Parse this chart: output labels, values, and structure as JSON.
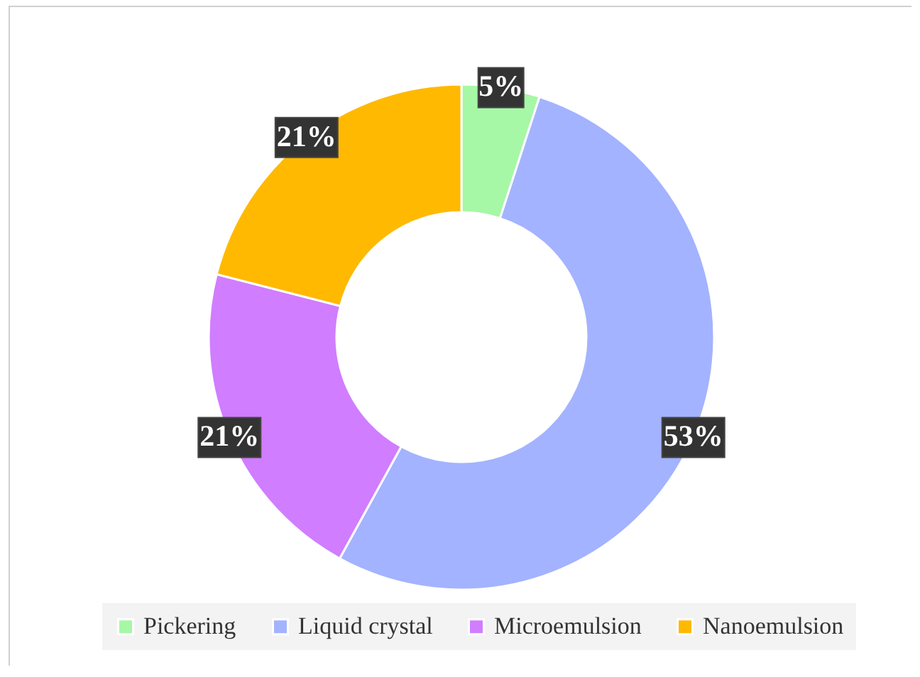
{
  "chart_data": {
    "type": "donut",
    "categories": [
      "Pickering",
      "Liquid crystal",
      "Microemulsion",
      "Nanoemulsion"
    ],
    "values": [
      5,
      53,
      21,
      21
    ],
    "colors": [
      "#a6f7a6",
      "#a3b3ff",
      "#d07dff",
      "#ffb900"
    ],
    "value_labels": [
      "5%",
      "53%",
      "21%",
      "21%"
    ],
    "legend": "bottom"
  }
}
